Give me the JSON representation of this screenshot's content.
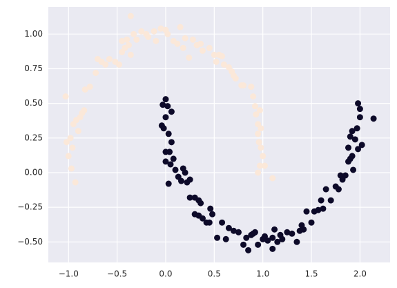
{
  "chart_data": {
    "type": "scatter",
    "xlim": [
      -1.208,
      2.31
    ],
    "ylim": [
      -0.648,
      1.196
    ],
    "xticks": [
      {
        "value": -1.0,
        "label": "−1.0"
      },
      {
        "value": -0.5,
        "label": "−0.5"
      },
      {
        "value": 0.0,
        "label": "0.0"
      },
      0.5,
      {
        "value": 1.0,
        "label": "1.0"
      },
      1.5,
      {
        "value": 2.0,
        "label": "2.0"
      }
    ],
    "yticks": [
      {
        "value": -0.5,
        "label": "−0.50"
      },
      {
        "value": -0.25,
        "label": "−0.25"
      },
      {
        "value": 0.0,
        "label": "0.00"
      },
      0.25,
      {
        "value": 0.5,
        "label": "0.50"
      },
      0.75,
      {
        "value": 1.0,
        "label": "1.00"
      }
    ],
    "grid": true,
    "series": [
      {
        "color": "#fbe8d9",
        "x": [
          -1.03,
          -1.02,
          -1.0,
          -0.98,
          -0.97,
          -0.96,
          -0.95,
          -0.93,
          -0.92,
          -0.9,
          -0.88,
          -0.86,
          -0.84,
          -0.83,
          -0.78,
          -0.72,
          -0.7,
          -0.66,
          -0.62,
          -0.58,
          -0.52,
          -0.48,
          -0.45,
          -0.42,
          -0.4,
          -0.38,
          -0.36,
          -0.33,
          -0.3,
          -0.25,
          -0.2,
          -0.18,
          -0.12,
          -0.1,
          -0.05,
          0.0,
          0.02,
          0.08,
          0.12,
          0.15,
          0.18,
          0.2,
          0.24,
          0.28,
          0.32,
          0.36,
          0.38,
          -0.36,
          -0.45,
          0.45,
          0.5,
          0.52,
          0.55,
          0.58,
          0.6,
          0.65,
          0.68,
          0.7,
          0.72,
          0.78,
          0.8,
          0.88,
          0.9,
          0.92,
          0.93,
          0.95,
          0.97,
          0.98,
          0.96,
          0.95,
          0.98,
          1.0,
          1.02,
          0.97,
          1.1,
          0.95
        ],
        "y": [
          0.55,
          0.22,
          0.12,
          0.25,
          0.03,
          0.18,
          0.35,
          -0.07,
          0.38,
          0.3,
          0.4,
          0.43,
          0.45,
          0.6,
          0.62,
          0.72,
          0.82,
          0.8,
          0.78,
          0.82,
          0.8,
          0.78,
          0.87,
          0.9,
          0.96,
          0.92,
          0.85,
          1.0,
          0.96,
          1.02,
          1.0,
          0.98,
          1.02,
          0.95,
          1.04,
          1.03,
          1.0,
          0.95,
          0.93,
          1.05,
          0.9,
          0.97,
          0.83,
          0.96,
          0.92,
          0.93,
          0.88,
          1.13,
          0.95,
          0.9,
          0.85,
          0.8,
          0.85,
          0.84,
          0.78,
          0.76,
          0.73,
          0.7,
          0.68,
          0.63,
          0.63,
          0.62,
          0.55,
          0.48,
          0.42,
          0.35,
          0.45,
          0.32,
          0.22,
          0.28,
          0.18,
          0.12,
          0.05,
          0.05,
          -0.04,
          0.0
        ]
      },
      {
        "color": "#0d0a29",
        "x": [
          0.0,
          -0.03,
          0.02,
          0.06,
          0.0,
          -0.04,
          -0.02,
          0.03,
          0.06,
          0.0,
          0.04,
          0.08,
          0.0,
          0.05,
          0.1,
          0.03,
          0.13,
          0.16,
          0.18,
          0.2,
          0.22,
          0.25,
          0.25,
          0.3,
          0.34,
          0.36,
          0.3,
          0.34,
          0.38,
          0.42,
          0.45,
          0.46,
          0.48,
          0.53,
          0.58,
          0.62,
          0.65,
          0.7,
          0.75,
          0.8,
          0.83,
          0.85,
          0.88,
          0.9,
          0.92,
          0.95,
          1.0,
          1.02,
          1.05,
          1.1,
          1.1,
          1.12,
          1.15,
          1.18,
          1.2,
          1.25,
          1.3,
          1.35,
          1.38,
          1.4,
          1.42,
          1.45,
          1.5,
          1.53,
          1.57,
          1.6,
          1.62,
          1.65,
          1.7,
          1.75,
          1.78,
          1.8,
          1.82,
          1.85,
          1.88,
          1.9,
          1.92,
          1.88,
          1.93,
          1.9,
          1.92,
          1.97,
          1.95,
          2.0,
          1.98,
          2.0,
          2.02,
          2.14,
          1.98
        ],
        "y": [
          0.53,
          0.49,
          0.48,
          0.44,
          0.4,
          0.34,
          0.32,
          0.28,
          0.22,
          0.15,
          0.15,
          0.1,
          0.08,
          0.06,
          0.02,
          -0.08,
          -0.03,
          -0.06,
          0.03,
          0.0,
          -0.07,
          -0.05,
          -0.18,
          -0.18,
          -0.2,
          -0.22,
          -0.3,
          -0.31,
          -0.33,
          -0.36,
          -0.36,
          -0.26,
          -0.3,
          -0.47,
          -0.36,
          -0.48,
          -0.4,
          -0.42,
          -0.43,
          -0.52,
          -0.47,
          -0.56,
          -0.45,
          -0.44,
          -0.43,
          -0.52,
          -0.48,
          -0.46,
          -0.49,
          -0.47,
          -0.55,
          -0.41,
          -0.5,
          -0.45,
          -0.48,
          -0.43,
          -0.44,
          -0.5,
          -0.42,
          -0.38,
          -0.41,
          -0.28,
          -0.36,
          -0.28,
          -0.27,
          -0.2,
          -0.26,
          -0.12,
          -0.2,
          -0.1,
          -0.12,
          -0.02,
          -0.05,
          -0.02,
          0.08,
          0.1,
          0.12,
          0.18,
          0.02,
          0.26,
          0.3,
          0.32,
          0.24,
          0.4,
          0.5,
          0.46,
          0.2,
          0.39,
          0.17
        ]
      }
    ]
  }
}
